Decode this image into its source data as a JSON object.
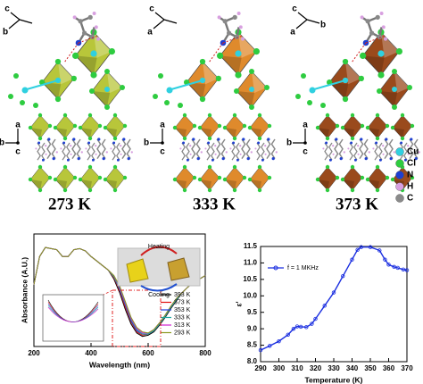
{
  "structures": [
    {
      "temperature": "273 K",
      "axes_top": [
        "c",
        "b"
      ],
      "axes_bottom": [
        "a",
        "b",
        "c"
      ]
    },
    {
      "temperature": "333 K",
      "axes_top": [
        "c",
        "a"
      ],
      "axes_bottom": [
        "a",
        "b",
        "c"
      ]
    },
    {
      "temperature": "373 K",
      "axes_top": [
        "c",
        "a",
        "b"
      ],
      "axes_bottom": [
        "a",
        "b",
        "c"
      ]
    }
  ],
  "elements": [
    {
      "symbol": "Cu",
      "color": "#2fd0e0"
    },
    {
      "symbol": "Cl",
      "color": "#2ecc40"
    },
    {
      "symbol": "N",
      "color": "#1f3fd0"
    },
    {
      "symbol": "H",
      "color": "#d8a0e0"
    },
    {
      "symbol": "C",
      "color": "#8a8a8a"
    }
  ],
  "chart_data": [
    {
      "type": "line",
      "x_label": "Wavelength (nm)",
      "y_label": "Absorbance (A.U.)",
      "annotations": [
        "Heating",
        "Cooling"
      ],
      "xlim": [
        200,
        800
      ],
      "xticks": [
        200,
        400,
        600,
        800
      ],
      "ylim": [
        0,
        1
      ],
      "x": [
        200,
        220,
        240,
        260,
        280,
        300,
        320,
        340,
        360,
        380,
        400,
        420,
        440,
        460,
        480,
        500,
        520,
        540,
        560,
        580,
        600,
        620,
        640,
        660,
        680,
        700,
        720,
        740,
        760,
        780,
        800
      ],
      "series": [
        {
          "name": "393 K",
          "color": "#000000",
          "values": [
            0.55,
            0.8,
            0.88,
            0.87,
            0.86,
            0.8,
            0.8,
            0.86,
            0.87,
            0.85,
            0.8,
            0.76,
            0.72,
            0.68,
            0.6,
            0.48,
            0.33,
            0.2,
            0.12,
            0.09,
            0.1,
            0.13,
            0.19,
            0.26,
            0.34,
            0.41,
            0.48,
            0.53,
            0.57,
            0.6,
            0.63
          ]
        },
        {
          "name": "373 K",
          "color": "#e01010",
          "values": [
            0.55,
            0.8,
            0.88,
            0.87,
            0.86,
            0.8,
            0.8,
            0.86,
            0.87,
            0.85,
            0.8,
            0.76,
            0.72,
            0.68,
            0.61,
            0.5,
            0.35,
            0.22,
            0.13,
            0.1,
            0.11,
            0.14,
            0.2,
            0.27,
            0.35,
            0.42,
            0.48,
            0.53,
            0.57,
            0.6,
            0.63
          ]
        },
        {
          "name": "353 K",
          "color": "#1a3fe0",
          "values": [
            0.55,
            0.8,
            0.88,
            0.87,
            0.86,
            0.8,
            0.8,
            0.86,
            0.87,
            0.85,
            0.8,
            0.76,
            0.72,
            0.68,
            0.62,
            0.51,
            0.37,
            0.23,
            0.14,
            0.11,
            0.11,
            0.14,
            0.2,
            0.27,
            0.35,
            0.42,
            0.48,
            0.53,
            0.57,
            0.6,
            0.63
          ]
        },
        {
          "name": "333 K",
          "color": "#1aa8a0",
          "values": [
            0.55,
            0.8,
            0.88,
            0.87,
            0.86,
            0.8,
            0.8,
            0.86,
            0.87,
            0.85,
            0.8,
            0.76,
            0.72,
            0.68,
            0.62,
            0.52,
            0.38,
            0.24,
            0.15,
            0.11,
            0.11,
            0.14,
            0.2,
            0.27,
            0.35,
            0.42,
            0.48,
            0.53,
            0.57,
            0.6,
            0.63
          ]
        },
        {
          "name": "313 K",
          "color": "#d020d0",
          "values": [
            0.55,
            0.8,
            0.88,
            0.87,
            0.86,
            0.8,
            0.8,
            0.86,
            0.87,
            0.85,
            0.8,
            0.76,
            0.72,
            0.68,
            0.63,
            0.53,
            0.39,
            0.25,
            0.16,
            0.12,
            0.12,
            0.15,
            0.21,
            0.28,
            0.36,
            0.43,
            0.48,
            0.53,
            0.57,
            0.6,
            0.63
          ]
        },
        {
          "name": "293 K",
          "color": "#8a9a20",
          "values": [
            0.55,
            0.8,
            0.88,
            0.87,
            0.86,
            0.8,
            0.8,
            0.86,
            0.87,
            0.85,
            0.8,
            0.76,
            0.72,
            0.68,
            0.63,
            0.54,
            0.4,
            0.26,
            0.17,
            0.13,
            0.12,
            0.15,
            0.21,
            0.28,
            0.36,
            0.43,
            0.48,
            0.53,
            0.57,
            0.6,
            0.63
          ]
        }
      ]
    },
    {
      "type": "line",
      "x_label": "Temperature (K)",
      "y_label": "ε'",
      "markers": true,
      "xlim": [
        290,
        370
      ],
      "xticks": [
        290,
        300,
        310,
        320,
        330,
        340,
        350,
        360,
        370
      ],
      "ylim": [
        8.0,
        11.5
      ],
      "yticks": [
        {
          "value": 8.0,
          "label": "8.0"
        },
        8.5,
        {
          "value": 9.0,
          "label": "9.0"
        },
        9.5,
        {
          "value": 10.0,
          "label": "10.0"
        },
        10.5,
        {
          "value": 11.0,
          "label": "11.0"
        },
        11.5
      ],
      "x": [
        290,
        295,
        300,
        305,
        308,
        310,
        312,
        315,
        318,
        320,
        325,
        330,
        335,
        340,
        343,
        345,
        350,
        355,
        358,
        360,
        363,
        365,
        368,
        370
      ],
      "series": [
        {
          "name": "f = 1 MKHz",
          "color": "#1a2ee0",
          "values": [
            8.35,
            8.48,
            8.62,
            8.82,
            9.0,
            9.07,
            9.06,
            9.05,
            9.15,
            9.3,
            9.7,
            10.1,
            10.6,
            11.1,
            11.4,
            11.48,
            11.48,
            11.38,
            11.1,
            10.95,
            10.88,
            10.85,
            10.8,
            10.78
          ]
        }
      ]
    }
  ]
}
